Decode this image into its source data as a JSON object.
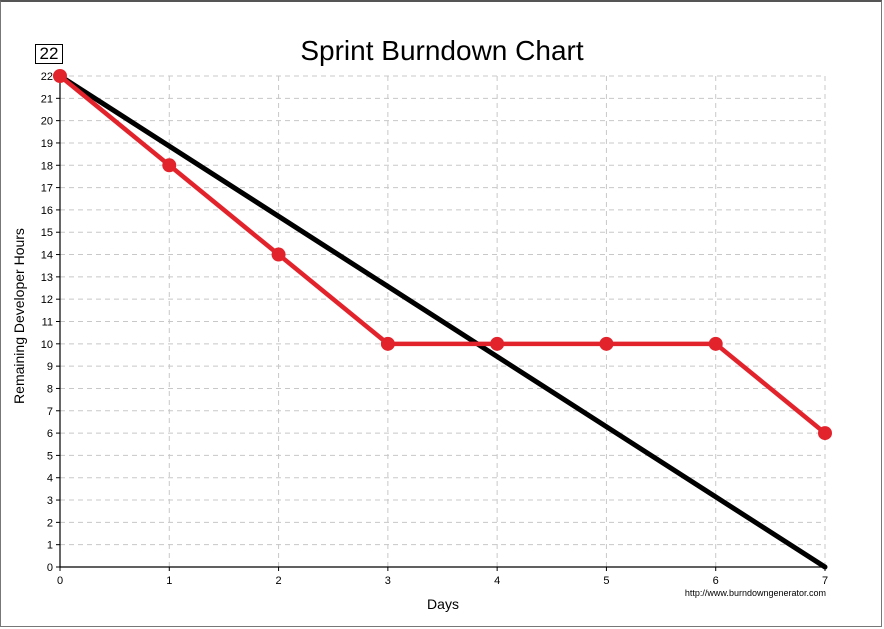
{
  "chart_data": {
    "type": "line",
    "title": "Sprint Burndown Chart",
    "xlabel": "Days",
    "ylabel": "Remaining Developer Hours",
    "x": [
      0,
      1,
      2,
      3,
      4,
      5,
      6,
      7
    ],
    "xlim": [
      0,
      7
    ],
    "ylim": [
      0,
      22
    ],
    "yticks": [
      0,
      1,
      2,
      3,
      4,
      5,
      6,
      7,
      8,
      9,
      10,
      11,
      12,
      13,
      14,
      15,
      16,
      17,
      18,
      19,
      20,
      21,
      22
    ],
    "grid": true,
    "series": [
      {
        "line": "ideal",
        "color": "#000000",
        "points": [
          [
            0,
            22
          ],
          [
            7,
            0
          ]
        ]
      },
      {
        "line": "actual",
        "color": "#e3232c",
        "markers": true,
        "points": [
          [
            0,
            22
          ],
          [
            1,
            18
          ],
          [
            2,
            14
          ],
          [
            3,
            10
          ],
          [
            4,
            10
          ],
          [
            5,
            10
          ],
          [
            6,
            10
          ],
          [
            7,
            6
          ]
        ]
      }
    ]
  },
  "badge_value": "22",
  "watermark": "http://www.burndowngenerator.com"
}
